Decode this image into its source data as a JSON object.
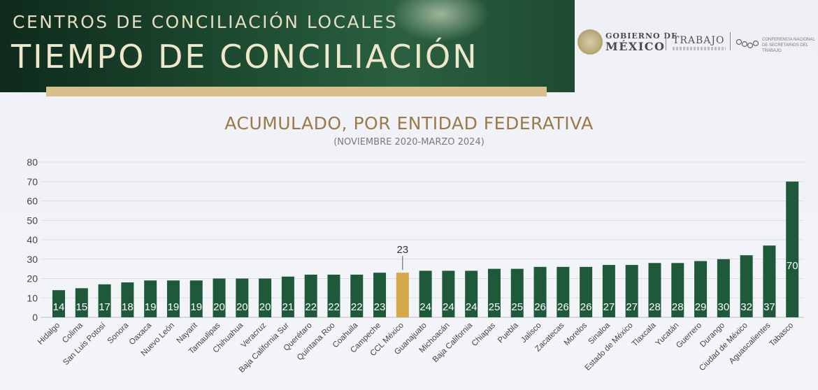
{
  "header": {
    "subtitle": "CENTROS DE CONCILIACIÓN LOCALES",
    "title": "TIEMPO DE CONCILIACIÓN"
  },
  "logos": {
    "gobierno_line1": "GOBIERNO DE",
    "gobierno_line2": "MÉXICO",
    "trabajo": "TRABAJO",
    "conferencia": "CONFERENCIA NACIONAL DE SECRETARIOS DEL TRABAJO"
  },
  "colors": {
    "bar": "#1e5a3a",
    "highlight": "#d4a94a",
    "title": "#9a7a48",
    "header": "#1c4a30",
    "gold_bar": "#d8c08c"
  },
  "chart_data": {
    "type": "bar",
    "title": "ACUMULADO, POR ENTIDAD FEDERATIVA",
    "subtitle": "(NOVIEMBRE 2020-MARZO 2024)",
    "xlabel": "",
    "ylabel": "",
    "ylim": [
      0,
      80
    ],
    "yticks": [
      0,
      10,
      20,
      30,
      40,
      50,
      60,
      70,
      80
    ],
    "grid": true,
    "categories": [
      "Hidalgo",
      "Colima",
      "San Luis Potosí",
      "Sonora",
      "Oaxaca",
      "Nuevo León",
      "Nayarit",
      "Tamaulipas",
      "Chihuahua",
      "Veracruz",
      "Baja California Sur",
      "Querétaro",
      "Quintana Roo",
      "Coahuila",
      "Campeche",
      "CCL México",
      "Guanajuato",
      "Michoacán",
      "Baja California",
      "Chiapas",
      "Puebla",
      "Jalisco",
      "Zacatecas",
      "Morelos",
      "Sinaloa",
      "Estado de México",
      "Tlaxcala",
      "Yucatán",
      "Guerrero",
      "Durango",
      "Ciudad de México",
      "Aguascalientes",
      "Tabasco"
    ],
    "values": [
      14,
      15,
      17,
      18,
      19,
      19,
      19,
      20,
      20,
      20,
      21,
      22,
      22,
      22,
      23,
      23,
      24,
      24,
      24,
      25,
      25,
      26,
      26,
      26,
      27,
      27,
      28,
      28,
      29,
      30,
      32,
      37,
      70
    ],
    "highlight_category": "CCL México"
  }
}
